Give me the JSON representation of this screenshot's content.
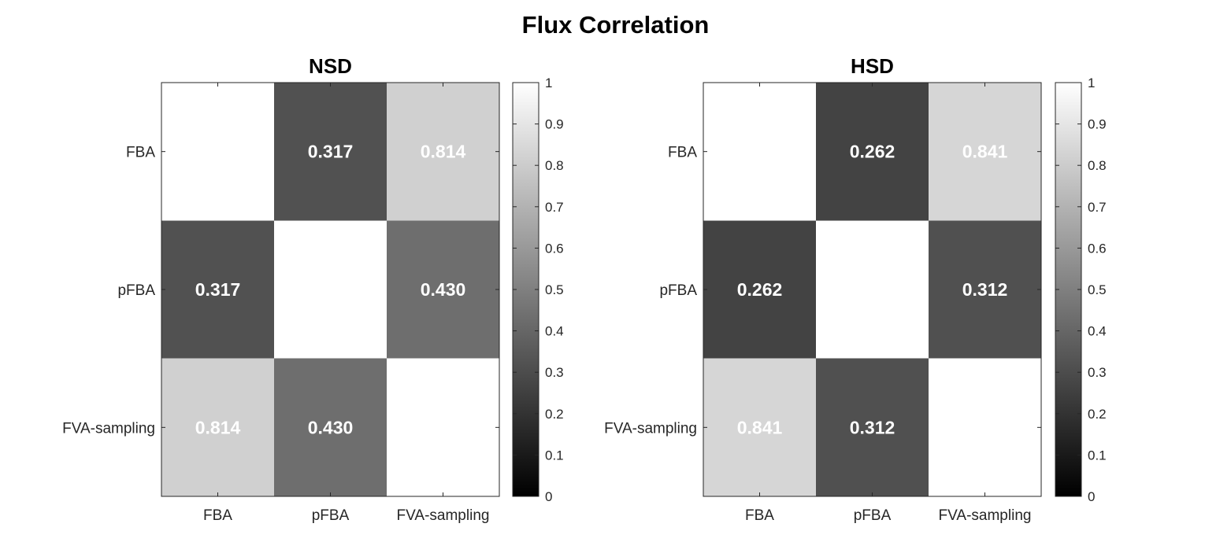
{
  "figure": {
    "title": "Flux Correlation"
  },
  "chart_data": [
    {
      "type": "heatmap",
      "title": "NSD",
      "x_categories": [
        "FBA",
        "pFBA",
        "FVA-sampling"
      ],
      "y_categories": [
        "FBA",
        "pFBA",
        "FVA-sampling"
      ],
      "matrix": [
        [
          1.0,
          0.317,
          0.814
        ],
        [
          0.317,
          1.0,
          0.43
        ],
        [
          0.814,
          0.43,
          1.0
        ]
      ],
      "cell_labels": [
        [
          "",
          "0.317",
          "0.814"
        ],
        [
          "0.317",
          "",
          "0.430"
        ],
        [
          "0.814",
          "0.430",
          ""
        ]
      ],
      "colormap": "gray",
      "clim": [
        0,
        1
      ],
      "colorbar_ticks": [
        "0",
        "0.1",
        "0.2",
        "0.3",
        "0.4",
        "0.5",
        "0.6",
        "0.7",
        "0.8",
        "0.9",
        "1"
      ]
    },
    {
      "type": "heatmap",
      "title": "HSD",
      "x_categories": [
        "FBA",
        "pFBA",
        "FVA-sampling"
      ],
      "y_categories": [
        "FBA",
        "pFBA",
        "FVA-sampling"
      ],
      "matrix": [
        [
          1.0,
          0.262,
          0.841
        ],
        [
          0.262,
          1.0,
          0.312
        ],
        [
          0.841,
          0.312,
          1.0
        ]
      ],
      "cell_labels": [
        [
          "",
          "0.262",
          "0.841"
        ],
        [
          "0.262",
          "",
          "0.312"
        ],
        [
          "0.841",
          "0.312",
          ""
        ]
      ],
      "colormap": "gray",
      "clim": [
        0,
        1
      ],
      "colorbar_ticks": [
        "0",
        "0.1",
        "0.2",
        "0.3",
        "0.4",
        "0.5",
        "0.6",
        "0.7",
        "0.8",
        "0.9",
        "1"
      ]
    }
  ]
}
